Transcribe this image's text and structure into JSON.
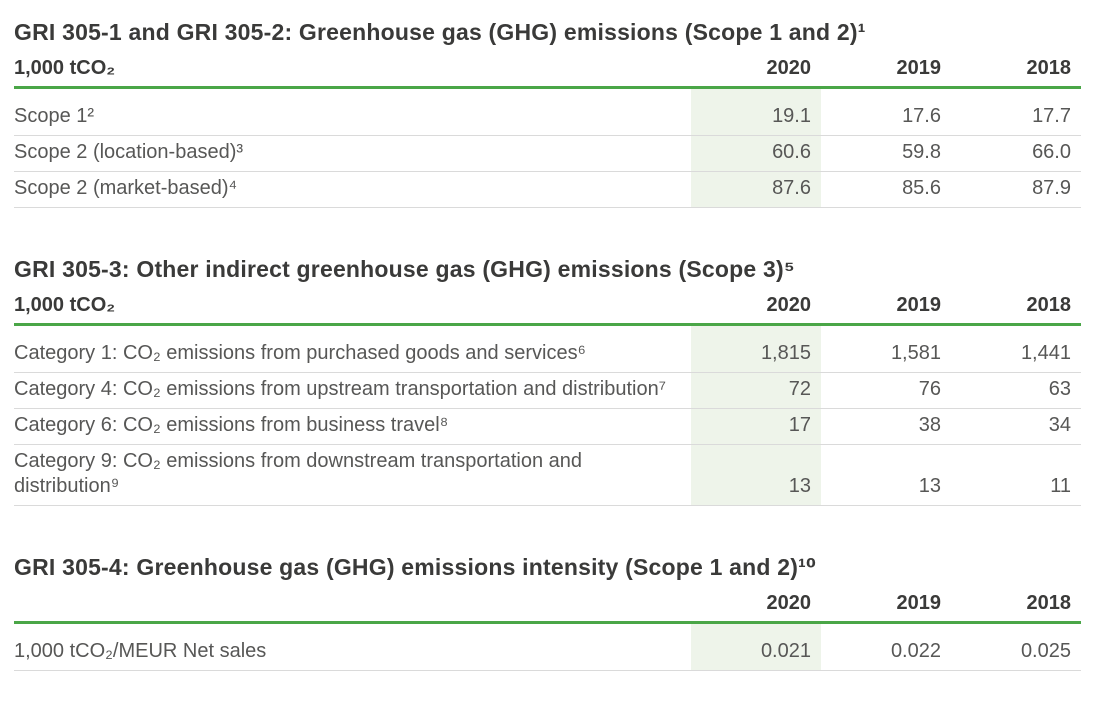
{
  "colors": {
    "accent_green": "#4aa647",
    "highlight_green": "#eef4ea"
  },
  "highlighted_year": "2020",
  "tables": [
    {
      "title": "GRI 305-1 and GRI 305-2: Greenhouse gas (GHG) emissions (Scope 1 and 2)¹",
      "unit_header": "1,000 tCO₂",
      "years": [
        "2020",
        "2019",
        "2018"
      ],
      "rows": [
        {
          "label": "Scope 1²",
          "values": [
            "19.1",
            "17.6",
            "17.7"
          ]
        },
        {
          "label": "Scope 2 (location-based)³",
          "values": [
            "60.6",
            "59.8",
            "66.0"
          ]
        },
        {
          "label": "Scope 2 (market-based)⁴",
          "values": [
            "87.6",
            "85.6",
            "87.9"
          ]
        }
      ]
    },
    {
      "title": "GRI 305-3: Other indirect greenhouse gas (GHG) emissions (Scope 3)⁵",
      "unit_header": "1,000 tCO₂",
      "years": [
        "2020",
        "2019",
        "2018"
      ],
      "rows": [
        {
          "label": "Category 1: CO₂ emissions from purchased goods and services⁶",
          "values": [
            "1,815",
            "1,581",
            "1,441"
          ]
        },
        {
          "label": "Category 4: CO₂ emissions from upstream transportation and distribution⁷",
          "values": [
            "72",
            "76",
            "63"
          ]
        },
        {
          "label": "Category 6: CO₂ emissions from business travel⁸",
          "values": [
            "17",
            "38",
            "34"
          ]
        },
        {
          "label": "Category 9: CO₂ emissions from downstream transportation and distribution⁹",
          "values": [
            "13",
            "13",
            "11"
          ]
        }
      ]
    },
    {
      "title": "GRI 305-4: Greenhouse gas (GHG) emissions intensity (Scope 1 and 2)¹⁰",
      "unit_header": "",
      "years": [
        "2020",
        "2019",
        "2018"
      ],
      "rows": [
        {
          "label": "1,000 tCO₂/MEUR Net sales",
          "values": [
            "0.021",
            "0.022",
            "0.025"
          ]
        }
      ]
    }
  ]
}
